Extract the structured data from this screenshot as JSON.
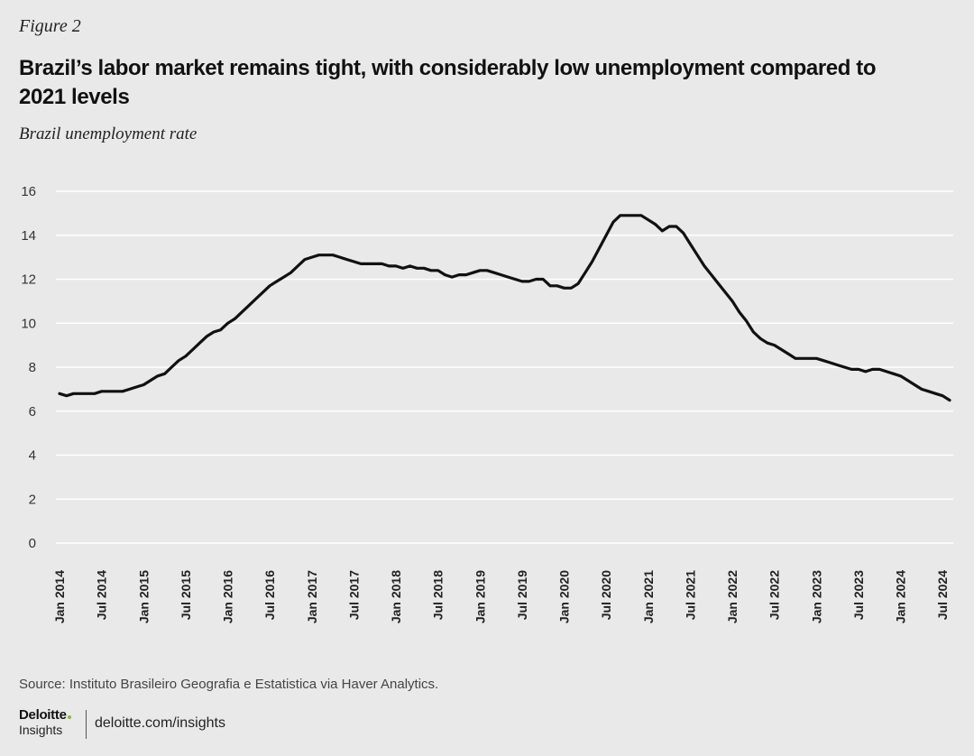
{
  "figure_label": "Figure 2",
  "title": "Brazil’s labor market remains tight, with considerably low unemployment compared to 2021 levels",
  "subtitle": "Brazil unemployment rate",
  "source": "Source: Instituto Brasileiro Geografia e Estatistica via Haver Analytics.",
  "footer": {
    "logo_name": "Deloitte",
    "logo_sub": "Insights",
    "url": "deloitte.com/insights"
  },
  "colors": {
    "background": "#e9e9ea",
    "line": "#111111",
    "grid": "#ffffff",
    "accent": "#86bc25"
  },
  "chart_data": {
    "type": "line",
    "title": "Brazil’s labor market remains tight, with considerably low unemployment compared to 2021 levels",
    "subtitle": "Brazil unemployment rate",
    "ylim": [
      0,
      16
    ],
    "yticks": [
      0,
      2,
      4,
      6,
      8,
      10,
      12,
      14,
      16
    ],
    "grid": true,
    "x_tick_labels": [
      "Jan 2014",
      "Jul 2014",
      "Jan 2015",
      "Jul 2015",
      "Jan 2016",
      "Jul 2016",
      "Jan 2017",
      "Jul 2017",
      "Jan 2018",
      "Jul 2018",
      "Jan 2019",
      "Jul 2019",
      "Jan 2020",
      "Jul 2020",
      "Jan 2021",
      "Jul 2021",
      "Jan 2022",
      "Jul 2022",
      "Jan 2023",
      "Jul 2023",
      "Jan 2024",
      "Jul 2024"
    ],
    "x_start": "Jan 2014",
    "x_end": "Oct 2024",
    "series": [
      {
        "values": [
          6.8,
          6.7,
          6.8,
          6.8,
          6.8,
          6.8,
          6.9,
          6.9,
          6.9,
          6.9,
          7.0,
          7.1,
          7.2,
          7.4,
          7.6,
          7.7,
          8.0,
          8.3,
          8.5,
          8.8,
          9.1,
          9.4,
          9.6,
          9.7,
          10.0,
          10.2,
          10.5,
          10.8,
          11.1,
          11.4,
          11.7,
          11.9,
          12.1,
          12.3,
          12.6,
          12.9,
          13.0,
          13.1,
          13.1,
          13.1,
          13.0,
          12.9,
          12.8,
          12.7,
          12.7,
          12.7,
          12.7,
          12.6,
          12.6,
          12.5,
          12.6,
          12.5,
          12.5,
          12.4,
          12.4,
          12.2,
          12.1,
          12.2,
          12.2,
          12.3,
          12.4,
          12.4,
          12.3,
          12.2,
          12.1,
          12.0,
          11.9,
          11.9,
          12.0,
          12.0,
          11.7,
          11.7,
          11.6,
          11.6,
          11.8,
          12.3,
          12.8,
          13.4,
          14.0,
          14.6,
          14.9,
          14.9,
          14.9,
          14.9,
          14.7,
          14.5,
          14.2,
          14.4,
          14.4,
          14.1,
          13.6,
          13.1,
          12.6,
          12.2,
          11.8,
          11.4,
          11.0,
          10.5,
          10.1,
          9.6,
          9.3,
          9.1,
          9.0,
          8.8,
          8.6,
          8.4,
          8.4,
          8.4,
          8.4,
          8.3,
          8.2,
          8.1,
          8.0,
          7.9,
          7.9,
          7.8,
          7.9,
          7.9,
          7.8,
          7.7,
          7.6,
          7.4,
          7.2,
          7.0,
          6.9,
          6.8,
          6.7,
          6.5
        ]
      }
    ]
  }
}
